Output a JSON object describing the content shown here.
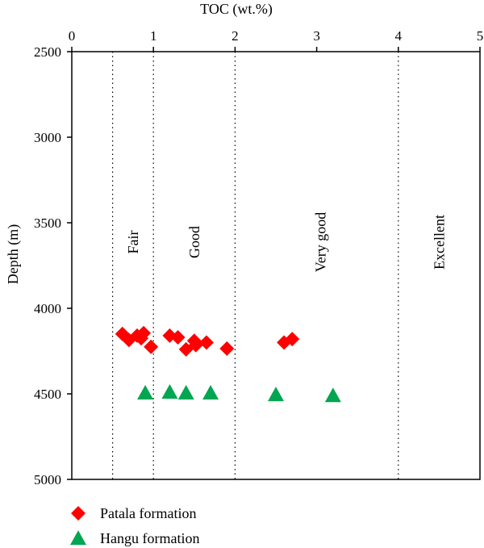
{
  "chart_data": {
    "type": "scatter",
    "xlabel": "TOC (wt.%)",
    "ylabel": "Depth (m)",
    "xlim": [
      0,
      5
    ],
    "ylim": [
      2500,
      5000
    ],
    "y_inverted": true,
    "x_axis_position": "top",
    "x_ticks": [
      "0",
      "1",
      "2",
      "3",
      "4",
      "5"
    ],
    "y_ticks": [
      "2500",
      "3000",
      "3500",
      "4000",
      "4500",
      "5000"
    ],
    "threshold_lines": [
      0.5,
      1,
      2,
      4
    ],
    "zones": [
      {
        "label": "Fair",
        "x": 0.75
      },
      {
        "label": "Good",
        "x": 1.5
      },
      {
        "label": "Very good",
        "x": 3.05
      },
      {
        "label": "Excellent",
        "x": 4.5
      }
    ],
    "legend_position": "bottom-left",
    "series": [
      {
        "name": "Patala formation",
        "marker": "diamond",
        "color": "#ff0000",
        "points": [
          {
            "x": 0.62,
            "y": 4150
          },
          {
            "x": 0.7,
            "y": 4185
          },
          {
            "x": 0.8,
            "y": 4160
          },
          {
            "x": 0.85,
            "y": 4175
          },
          {
            "x": 0.88,
            "y": 4145
          },
          {
            "x": 0.97,
            "y": 4225
          },
          {
            "x": 1.2,
            "y": 4160
          },
          {
            "x": 1.3,
            "y": 4170
          },
          {
            "x": 1.4,
            "y": 4240
          },
          {
            "x": 1.5,
            "y": 4190
          },
          {
            "x": 1.52,
            "y": 4215
          },
          {
            "x": 1.65,
            "y": 4200
          },
          {
            "x": 1.9,
            "y": 4235
          },
          {
            "x": 2.6,
            "y": 4200
          },
          {
            "x": 2.7,
            "y": 4180
          }
        ]
      },
      {
        "name": "Hangu formation",
        "marker": "triangle",
        "color": "#00a651",
        "points": [
          {
            "x": 0.9,
            "y": 4495
          },
          {
            "x": 1.2,
            "y": 4490
          },
          {
            "x": 1.4,
            "y": 4495
          },
          {
            "x": 1.7,
            "y": 4495
          },
          {
            "x": 2.5,
            "y": 4505
          },
          {
            "x": 3.2,
            "y": 4510
          }
        ]
      }
    ]
  }
}
